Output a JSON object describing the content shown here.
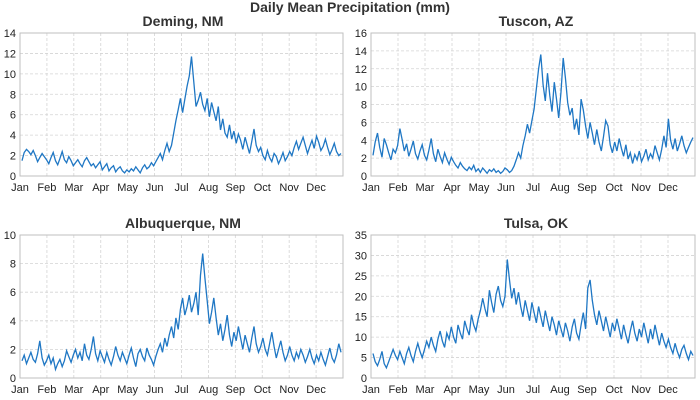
{
  "figure_title": "Daily Mean Precipitation (mm)",
  "chart_data": [
    {
      "type": "line",
      "title": "Deming, NM",
      "ylim": [
        0,
        14
      ],
      "yticks": [
        0,
        2,
        4,
        6,
        8,
        10,
        12,
        14
      ],
      "months": [
        "Jan",
        "Feb",
        "Mar",
        "Apr",
        "May",
        "Jun",
        "Jul",
        "Aug",
        "Sep",
        "Oct",
        "Nov",
        "Dec"
      ],
      "grid": true,
      "color": "#1f77c4",
      "series": [
        {
          "values": [
            1.5,
            2.3,
            2.6,
            2.4,
            2.1,
            2.5,
            2.0,
            1.4,
            1.8,
            2.2,
            1.9,
            1.6,
            1.2,
            1.8,
            2.3,
            1.5,
            1.1,
            1.7,
            2.4,
            1.6,
            1.3,
            1.9,
            1.5,
            1.0,
            1.3,
            1.6,
            1.2,
            0.9,
            1.5,
            1.8,
            1.4,
            1.0,
            1.2,
            0.8,
            1.1,
            1.4,
            0.6,
            0.9,
            1.2,
            0.5,
            0.8,
            1.0,
            0.4,
            0.7,
            0.9,
            0.5,
            0.3,
            0.6,
            0.4,
            0.7,
            0.5,
            0.9,
            0.6,
            0.3,
            0.8,
            1.1,
            0.7,
            0.9,
            1.3,
            1.0,
            1.4,
            1.8,
            2.2,
            1.6,
            2.5,
            3.2,
            2.4,
            3.0,
            4.2,
            5.4,
            6.5,
            7.6,
            6.2,
            7.5,
            8.8,
            9.8,
            11.7,
            9.2,
            6.8,
            7.4,
            8.2,
            7.0,
            6.4,
            7.6,
            5.8,
            7.2,
            6.3,
            5.4,
            6.8,
            4.5,
            5.6,
            4.2,
            3.8,
            5.0,
            3.6,
            4.4,
            3.2,
            4.1,
            3.5,
            2.6,
            3.8,
            3.0,
            2.2,
            3.4,
            4.6,
            3.0,
            2.4,
            2.8,
            2.0,
            1.6,
            2.5,
            1.8,
            1.4,
            2.2,
            1.9,
            1.2,
            1.7,
            2.3,
            1.5,
            1.9,
            2.4,
            2.0,
            2.8,
            3.4,
            2.6,
            3.2,
            3.8,
            3.0,
            2.2,
            2.9,
            3.5,
            2.7,
            3.9,
            3.3,
            2.5,
            2.9,
            3.6,
            2.8,
            2.1,
            2.6,
            3.2,
            2.4,
            2.0,
            2.2
          ]
        }
      ]
    },
    {
      "type": "line",
      "title": "Tuscon, AZ",
      "ylim": [
        0,
        16
      ],
      "yticks": [
        0,
        2,
        4,
        6,
        8,
        10,
        12,
        14,
        16
      ],
      "months": [
        "Jan",
        "Feb",
        "Mar",
        "Apr",
        "May",
        "Jun",
        "Jul",
        "Aug",
        "Sep",
        "Oct",
        "Nov",
        "Dec"
      ],
      "grid": true,
      "color": "#1f77c4",
      "series": [
        {
          "values": [
            2.3,
            3.8,
            4.8,
            3.2,
            2.1,
            4.2,
            3.5,
            2.6,
            1.8,
            3.0,
            2.6,
            3.4,
            5.3,
            4.1,
            2.8,
            3.6,
            2.2,
            3.0,
            3.9,
            2.5,
            1.9,
            2.8,
            3.5,
            2.3,
            1.8,
            2.9,
            4.2,
            2.5,
            1.6,
            3.0,
            2.2,
            1.5,
            2.6,
            1.9,
            1.3,
            2.1,
            1.6,
            1.2,
            0.9,
            1.5,
            1.1,
            0.8,
            0.6,
            1.0,
            0.7,
            1.2,
            0.5,
            0.8,
            0.4,
            0.9,
            0.6,
            0.3,
            0.7,
            0.5,
            0.8,
            0.4,
            0.6,
            0.3,
            0.5,
            0.9,
            0.7,
            0.4,
            0.6,
            1.1,
            1.8,
            2.6,
            2.0,
            3.4,
            4.5,
            5.8,
            4.8,
            6.2,
            7.5,
            9.8,
            12.0,
            13.6,
            10.2,
            8.4,
            11.5,
            9.0,
            7.2,
            10.5,
            8.6,
            6.5,
            9.4,
            13.2,
            11.0,
            8.2,
            6.8,
            7.6,
            5.2,
            6.4,
            4.6,
            8.6,
            7.4,
            5.6,
            4.2,
            6.0,
            4.8,
            3.5,
            5.2,
            3.8,
            2.8,
            4.4,
            6.2,
            5.6,
            3.5,
            2.6,
            3.8,
            2.8,
            4.2,
            3.1,
            2.2,
            3.5,
            1.9,
            2.6,
            1.4,
            2.4,
            1.8,
            2.8,
            1.6,
            2.2,
            3.0,
            1.8,
            2.5,
            2.0,
            3.4,
            2.6,
            1.8,
            3.0,
            4.5,
            3.2,
            6.4,
            4.0,
            3.0,
            4.2,
            2.8,
            3.6,
            4.5,
            3.4,
            2.6,
            3.2,
            3.8,
            4.3
          ]
        }
      ]
    },
    {
      "type": "line",
      "title": "Albuquerque, NM",
      "ylim": [
        0,
        10
      ],
      "yticks": [
        0,
        2,
        4,
        6,
        8,
        10
      ],
      "months": [
        "Jan",
        "Feb",
        "Mar",
        "Apr",
        "May",
        "Jun",
        "Jul",
        "Aug",
        "Sep",
        "Oct",
        "Nov",
        "Dec"
      ],
      "grid": true,
      "color": "#1f77c4",
      "series": [
        {
          "values": [
            1.2,
            1.6,
            1.0,
            1.4,
            1.8,
            1.3,
            1.1,
            1.7,
            2.6,
            1.4,
            0.9,
            1.2,
            1.6,
            1.0,
            1.4,
            0.6,
            1.0,
            1.3,
            0.8,
            1.2,
            1.9,
            1.5,
            1.1,
            1.6,
            2.0,
            1.4,
            1.8,
            1.2,
            2.4,
            1.6,
            1.3,
            2.0,
            2.9,
            1.7,
            1.2,
            1.9,
            1.5,
            1.1,
            1.8,
            1.3,
            0.9,
            1.5,
            2.2,
            1.6,
            1.2,
            1.8,
            1.4,
            1.0,
            1.6,
            2.1,
            1.4,
            0.8,
            1.7,
            2.0,
            1.5,
            1.2,
            2.1,
            1.6,
            1.3,
            0.9,
            1.5,
            2.0,
            2.4,
            1.8,
            2.8,
            2.2,
            3.0,
            3.6,
            2.8,
            4.2,
            3.4,
            4.8,
            5.6,
            4.4,
            5.0,
            5.8,
            4.6,
            5.2,
            6.0,
            4.4,
            7.2,
            8.7,
            7.0,
            5.4,
            3.8,
            4.6,
            5.6,
            4.2,
            3.0,
            3.8,
            2.6,
            3.4,
            4.4,
            3.0,
            2.2,
            3.2,
            2.6,
            3.6,
            2.8,
            2.0,
            3.0,
            2.4,
            1.8,
            2.8,
            3.6,
            2.4,
            1.8,
            2.2,
            2.8,
            2.0,
            1.6,
            2.4,
            3.2,
            2.2,
            1.4,
            2.0,
            2.6,
            1.8,
            1.2,
            1.6,
            2.2,
            1.6,
            1.2,
            1.8,
            1.4,
            2.0,
            1.6,
            1.1,
            1.5,
            2.0,
            1.4,
            1.0,
            1.6,
            1.2,
            1.8,
            1.3,
            0.9,
            1.5,
            2.1,
            1.4,
            1.1,
            1.6,
            2.4,
            1.8
          ]
        }
      ]
    },
    {
      "type": "line",
      "title": "Tulsa, OK",
      "ylim": [
        0,
        35
      ],
      "yticks": [
        0,
        5,
        10,
        15,
        20,
        25,
        30,
        35
      ],
      "months": [
        "Jan",
        "Feb",
        "Mar",
        "Apr",
        "May",
        "Jun",
        "Jul",
        "Aug",
        "Sep",
        "Oct",
        "Nov",
        "Dec"
      ],
      "grid": true,
      "color": "#1f77c4",
      "series": [
        {
          "values": [
            6.0,
            4.0,
            3.0,
            4.5,
            6.5,
            3.5,
            2.5,
            4.0,
            5.5,
            7.0,
            5.5,
            4.5,
            6.5,
            5.0,
            3.5,
            6.0,
            7.5,
            5.5,
            4.0,
            6.5,
            8.5,
            6.5,
            5.0,
            7.0,
            9.0,
            7.5,
            10.0,
            8.0,
            6.5,
            9.5,
            11.5,
            9.0,
            7.5,
            11.0,
            9.5,
            12.5,
            10.0,
            8.5,
            13.0,
            11.0,
            9.5,
            14.0,
            12.0,
            10.5,
            15.5,
            13.0,
            11.5,
            14.5,
            16.5,
            19.5,
            17.0,
            15.0,
            21.5,
            18.5,
            16.0,
            20.5,
            22.5,
            19.0,
            17.5,
            20.0,
            29.0,
            24.0,
            19.5,
            22.0,
            18.0,
            21.0,
            17.5,
            15.0,
            19.0,
            16.5,
            14.0,
            18.5,
            16.0,
            13.5,
            17.5,
            15.0,
            12.5,
            16.5,
            14.0,
            11.5,
            15.0,
            13.0,
            10.5,
            14.0,
            12.0,
            10.0,
            13.5,
            11.5,
            9.0,
            12.5,
            14.5,
            11.0,
            9.5,
            13.0,
            16.0,
            12.0,
            22.0,
            24.0,
            19.0,
            15.5,
            13.0,
            16.5,
            14.0,
            11.5,
            15.0,
            12.5,
            10.0,
            13.5,
            11.5,
            14.5,
            12.0,
            9.5,
            13.0,
            10.5,
            8.5,
            11.5,
            14.0,
            11.0,
            9.0,
            12.0,
            10.0,
            13.5,
            11.0,
            8.5,
            12.0,
            9.5,
            13.0,
            10.5,
            8.0,
            11.0,
            9.0,
            7.5,
            9.5,
            7.5,
            6.0,
            8.5,
            6.5,
            5.0,
            7.0,
            8.0,
            6.0,
            4.5,
            6.5,
            5.5
          ]
        }
      ]
    }
  ]
}
